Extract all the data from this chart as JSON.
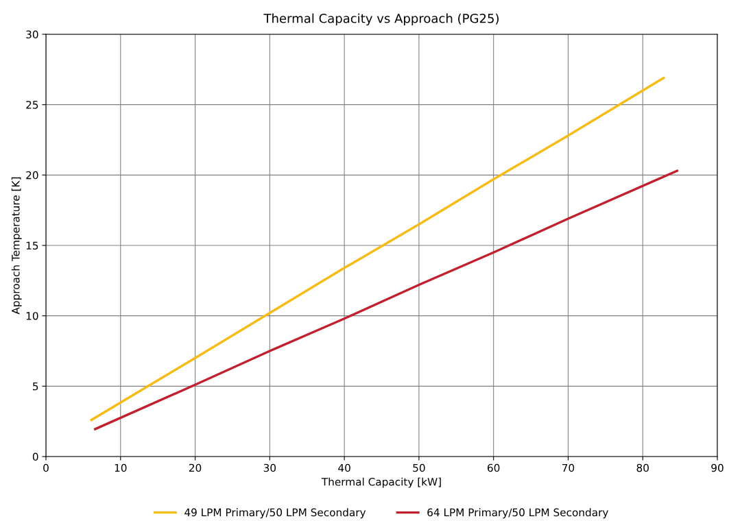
{
  "chart_data": {
    "type": "line",
    "title": "Thermal Capacity vs Approach (PG25)",
    "xlabel": "Thermal Capacity [kW]",
    "ylabel": "Approach Temperature [K]",
    "xlim": [
      0,
      90
    ],
    "xticks": [
      0,
      10,
      20,
      30,
      40,
      50,
      60,
      70,
      80,
      90
    ],
    "ylim": [
      0,
      30
    ],
    "yticks": [
      0,
      5,
      10,
      15,
      20,
      25,
      30
    ],
    "grid": true,
    "legend": "bottom",
    "marker": "none",
    "line_style": "solid",
    "series": [
      {
        "name": "49 LPM Primary/50 LPM Secondary",
        "color": "#f7bb16",
        "x": [
          6.1,
          20,
          30,
          40,
          50,
          60,
          70,
          82.8
        ],
        "values": [
          2.6,
          7.0,
          10.2,
          13.4,
          16.5,
          19.7,
          22.8,
          26.9
        ]
      },
      {
        "name": "64 LPM Primary/50 LPM Secondary",
        "color": "#c1202e",
        "x": [
          6.6,
          20,
          30,
          40,
          50,
          60,
          70,
          84.6
        ],
        "values": [
          1.95,
          5.1,
          7.5,
          9.8,
          12.2,
          14.5,
          16.9,
          20.3
        ]
      }
    ]
  }
}
